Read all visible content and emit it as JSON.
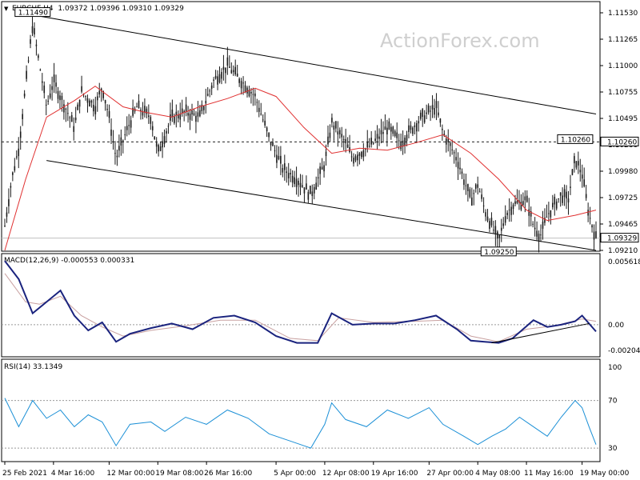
{
  "chart_data": [
    {
      "type": "candlestick",
      "title": "EURCHF,H4  1.09372 1.09396 1.09310 1.09329",
      "symbol": "EURCHF",
      "timeframe": "H4",
      "ohlc_last": {
        "open": 1.09372,
        "high": 1.09396,
        "low": 1.0931,
        "close": 1.09329
      },
      "watermark": "ActionForex.com",
      "ylim": [
        1.0921,
        1.1151
      ],
      "y_ticks": [
        "1.11530",
        "1.11265",
        "1.11000",
        "1.10755",
        "1.10495",
        "1.10260",
        "1.09980",
        "1.09725",
        "1.09465",
        "1.09210"
      ],
      "current_price_label": "1.09329",
      "current_price": 1.09329,
      "resistance_label": "1.10260",
      "resistance_level": 1.1026,
      "annotations": [
        {
          "text": "1.11490",
          "date": "1 Mar 2021",
          "value": 1.1149
        },
        {
          "text": "1.10260",
          "date": "18 May 2021",
          "value": 1.1026
        },
        {
          "text": "1.09250",
          "date": "7 May 2021",
          "value": 1.0925
        }
      ],
      "channel_upper": [
        {
          "date": "1 Mar 2021",
          "value": 1.1149
        },
        {
          "date": "21 May 2021",
          "value": 1.1053
        }
      ],
      "channel_lower": [
        {
          "date": "3 Mar 2021",
          "value": 1.1008
        },
        {
          "date": "21 May 2021",
          "value": 1.0921
        }
      ],
      "moving_average_color": "#e03030",
      "candle_color": "#1a1a1a",
      "close_path": [
        {
          "date": "25 Feb 2021",
          "value": 1.0945
        },
        {
          "date": "26 Feb 2021",
          "value": 1.099
        },
        {
          "date": "27 Feb 2021",
          "value": 1.102
        },
        {
          "date": "28 Feb 2021",
          "value": 1.108
        },
        {
          "date": "1 Mar 2021",
          "value": 1.114
        },
        {
          "date": "2 Mar 2021",
          "value": 1.11
        },
        {
          "date": "3 Mar 2021",
          "value": 1.106
        },
        {
          "date": "4 Mar 2021",
          "value": 1.1085
        },
        {
          "date": "5 Mar 2021",
          "value": 1.107
        },
        {
          "date": "7 Mar 2021",
          "value": 1.104
        },
        {
          "date": "8 Mar 2021",
          "value": 1.1075
        },
        {
          "date": "10 Mar 2021",
          "value": 1.106
        },
        {
          "date": "11 Mar 2021",
          "value": 1.108
        },
        {
          "date": "12 Mar 2021",
          "value": 1.105
        },
        {
          "date": "13 Mar 2021",
          "value": 1.101
        },
        {
          "date": "15 Mar 2021",
          "value": 1.1045
        },
        {
          "date": "16 Mar 2021",
          "value": 1.106
        },
        {
          "date": "18 Mar 2021",
          "value": 1.105
        },
        {
          "date": "19 Mar 2021",
          "value": 1.1015
        },
        {
          "date": "21 Mar 2021",
          "value": 1.105
        },
        {
          "date": "23 Mar 2021",
          "value": 1.1055
        },
        {
          "date": "25 Mar 2021",
          "value": 1.105
        },
        {
          "date": "27 Mar 2021",
          "value": 1.1085
        },
        {
          "date": "29 Mar 2021",
          "value": 1.11
        },
        {
          "date": "31 Mar 2021",
          "value": 1.1085
        },
        {
          "date": "2 Apr 2021",
          "value": 1.107
        },
        {
          "date": "4 Apr 2021",
          "value": 1.103
        },
        {
          "date": "6 Apr 2021",
          "value": 1.1
        },
        {
          "date": "8 Apr 2021",
          "value": 1.099
        },
        {
          "date": "10 Apr 2021",
          "value": 1.0975
        },
        {
          "date": "12 Apr 2021",
          "value": 1.1005
        },
        {
          "date": "13 Apr 2021",
          "value": 1.1045
        },
        {
          "date": "15 Apr 2021",
          "value": 1.1025
        },
        {
          "date": "16 Apr 2021",
          "value": 1.101
        },
        {
          "date": "19 Apr 2021",
          "value": 1.1025
        },
        {
          "date": "21 Apr 2021",
          "value": 1.104
        },
        {
          "date": "23 Apr 2021",
          "value": 1.1025
        },
        {
          "date": "24 Apr 2021",
          "value": 1.1035
        },
        {
          "date": "26 Apr 2021",
          "value": 1.105
        },
        {
          "date": "28 Apr 2021",
          "value": 1.106
        },
        {
          "date": "29 Apr 2021",
          "value": 1.1035
        },
        {
          "date": "1 May 2021",
          "value": 1.101
        },
        {
          "date": "2 May 2021",
          "value": 1.099
        },
        {
          "date": "3 May 2021",
          "value": 1.097
        },
        {
          "date": "4 May 2021",
          "value": 1.0985
        },
        {
          "date": "5 May 2021",
          "value": 1.096
        },
        {
          "date": "6 May 2021",
          "value": 1.0945
        },
        {
          "date": "7 May 2021",
          "value": 1.093
        },
        {
          "date": "8 May 2021",
          "value": 1.0955
        },
        {
          "date": "9 May 2021",
          "value": 1.0965
        },
        {
          "date": "11 May 2021",
          "value": 1.097
        },
        {
          "date": "12 May 2021",
          "value": 1.0945
        },
        {
          "date": "13 May 2021",
          "value": 1.0935
        },
        {
          "date": "14 May 2021",
          "value": 1.0955
        },
        {
          "date": "16 May 2021",
          "value": 1.0975
        },
        {
          "date": "17 May 2021",
          "value": 1.097
        },
        {
          "date": "18 May 2021",
          "value": 1.101
        },
        {
          "date": "19 May 2021",
          "value": 1.0995
        },
        {
          "date": "20 May 2021",
          "value": 1.0955
        },
        {
          "date": "21 May 2021",
          "value": 1.0933
        }
      ],
      "ma_path": [
        {
          "date": "25 Feb 2021",
          "value": 1.0921
        },
        {
          "date": "28 Feb 2021",
          "value": 1.099
        },
        {
          "date": "3 Mar 2021",
          "value": 1.105
        },
        {
          "date": "7 Mar 2021",
          "value": 1.1066
        },
        {
          "date": "10 Mar 2021",
          "value": 1.108
        },
        {
          "date": "14 Mar 2021",
          "value": 1.106
        },
        {
          "date": "17 Mar 2021",
          "value": 1.1055
        },
        {
          "date": "21 Mar 2021",
          "value": 1.105
        },
        {
          "date": "25 Mar 2021",
          "value": 1.106
        },
        {
          "date": "29 Mar 2021",
          "value": 1.1068
        },
        {
          "date": "2 Apr 2021",
          "value": 1.1078
        },
        {
          "date": "5 Apr 2021",
          "value": 1.107
        },
        {
          "date": "9 Apr 2021",
          "value": 1.104
        },
        {
          "date": "13 Apr 2021",
          "value": 1.1015
        },
        {
          "date": "17 Apr 2021",
          "value": 1.102
        },
        {
          "date": "21 Apr 2021",
          "value": 1.1018
        },
        {
          "date": "25 Apr 2021",
          "value": 1.1025
        },
        {
          "date": "29 Apr 2021",
          "value": 1.1033
        },
        {
          "date": "3 May 2021",
          "value": 1.1015
        },
        {
          "date": "7 May 2021",
          "value": 1.099
        },
        {
          "date": "11 May 2021",
          "value": 1.096
        },
        {
          "date": "14 May 2021",
          "value": 1.095
        },
        {
          "date": "18 May 2021",
          "value": 1.0955
        },
        {
          "date": "21 May 2021",
          "value": 1.096
        }
      ]
    },
    {
      "type": "line",
      "title": "MACD(12,26,9) -0.000553 0.000331",
      "ylim": [
        -0.00275,
        0.00575
      ],
      "y_ticks": [
        "0.005618",
        "0.00",
        "-0.002046"
      ],
      "zero_line": 0,
      "series": [
        {
          "name": "MACD",
          "color": "#1a237e",
          "values": [
            {
              "date": "25 Feb 2021",
              "value": 0.0056
            },
            {
              "date": "27 Feb 2021",
              "value": 0.004
            },
            {
              "date": "1 Mar 2021",
              "value": 0.001
            },
            {
              "date": "3 Mar 2021",
              "value": 0.002
            },
            {
              "date": "5 Mar 2021",
              "value": 0.003
            },
            {
              "date": "7 Mar 2021",
              "value": 0.0008
            },
            {
              "date": "9 Mar 2021",
              "value": -0.0005
            },
            {
              "date": "11 Mar 2021",
              "value": 0.0002
            },
            {
              "date": "13 Mar 2021",
              "value": -0.0015
            },
            {
              "date": "15 Mar 2021",
              "value": -0.0008
            },
            {
              "date": "18 Mar 2021",
              "value": -0.0003
            },
            {
              "date": "21 Mar 2021",
              "value": 0.0001
            },
            {
              "date": "24 Mar 2021",
              "value": -0.0004
            },
            {
              "date": "27 Mar 2021",
              "value": 0.0006
            },
            {
              "date": "30 Mar 2021",
              "value": 0.0008
            },
            {
              "date": "2 Apr 2021",
              "value": 0.0002
            },
            {
              "date": "5 Apr 2021",
              "value": -0.001
            },
            {
              "date": "8 Apr 2021",
              "value": -0.0016
            },
            {
              "date": "11 Apr 2021",
              "value": -0.0016
            },
            {
              "date": "13 Apr 2021",
              "value": 0.001
            },
            {
              "date": "16 Apr 2021",
              "value": 0.0
            },
            {
              "date": "19 Apr 2021",
              "value": 0.0001
            },
            {
              "date": "22 Apr 2021",
              "value": 0.0001
            },
            {
              "date": "25 Apr 2021",
              "value": 0.0004
            },
            {
              "date": "28 Apr 2021",
              "value": 0.0008
            },
            {
              "date": "1 May 2021",
              "value": -0.0004
            },
            {
              "date": "3 May 2021",
              "value": -0.0014
            },
            {
              "date": "5 May 2021",
              "value": -0.0015
            },
            {
              "date": "7 May 2021",
              "value": -0.0016
            },
            {
              "date": "9 May 2021",
              "value": -0.0012
            },
            {
              "date": "12 May 2021",
              "value": 0.0004
            },
            {
              "date": "14 May 2021",
              "value": -0.0002
            },
            {
              "date": "16 May 2021",
              "value": 0.0
            },
            {
              "date": "18 May 2021",
              "value": 0.0003
            },
            {
              "date": "19 May 2021",
              "value": 0.0008
            },
            {
              "date": "21 May 2021",
              "value": -0.0006
            }
          ]
        },
        {
          "name": "Signal",
          "color": "#c8a0a0",
          "values": [
            {
              "date": "25 Feb 2021",
              "value": 0.0045
            },
            {
              "date": "28 Feb 2021",
              "value": 0.002
            },
            {
              "date": "2 Mar 2021",
              "value": 0.0018
            },
            {
              "date": "5 Mar 2021",
              "value": 0.0025
            },
            {
              "date": "8 Mar 2021",
              "value": 0.0008
            },
            {
              "date": "11 Mar 2021",
              "value": -0.0002
            },
            {
              "date": "14 Mar 2021",
              "value": -0.001
            },
            {
              "date": "18 Mar 2021",
              "value": -0.0005
            },
            {
              "date": "23 Mar 2021",
              "value": -0.0001
            },
            {
              "date": "28 Mar 2021",
              "value": 0.0004
            },
            {
              "date": "2 Apr 2021",
              "value": 0.0004
            },
            {
              "date": "7 Apr 2021",
              "value": -0.0012
            },
            {
              "date": "11 Apr 2021",
              "value": -0.0014
            },
            {
              "date": "14 Apr 2021",
              "value": 0.0006
            },
            {
              "date": "19 Apr 2021",
              "value": 0.0002
            },
            {
              "date": "25 Apr 2021",
              "value": 0.0003
            },
            {
              "date": "29 Apr 2021",
              "value": 0.0004
            },
            {
              "date": "3 May 2021",
              "value": -0.001
            },
            {
              "date": "7 May 2021",
              "value": -0.0015
            },
            {
              "date": "11 May 2021",
              "value": -0.0004
            },
            {
              "date": "15 May 2021",
              "value": -0.0001
            },
            {
              "date": "19 May 2021",
              "value": 0.0005
            },
            {
              "date": "21 May 2021",
              "value": 0.0003
            }
          ]
        }
      ],
      "trendline": [
        {
          "date": "6 May 2021",
          "value": -0.0016
        },
        {
          "date": "20 May 2021",
          "value": 0.0001
        }
      ]
    },
    {
      "type": "line",
      "title": "RSI(14) 33.1349",
      "ylim": [
        20,
        100
      ],
      "y_ticks": [
        "100",
        "70",
        "30"
      ],
      "levels": [
        70,
        30
      ],
      "series": [
        {
          "name": "RSI(14)",
          "color": "#1a8fd6",
          "values": [
            {
              "date": "25 Feb 2021",
              "value": 72
            },
            {
              "date": "27 Feb 2021",
              "value": 48
            },
            {
              "date": "1 Mar 2021",
              "value": 70
            },
            {
              "date": "3 Mar 2021",
              "value": 55
            },
            {
              "date": "5 Mar 2021",
              "value": 62
            },
            {
              "date": "7 Mar 2021",
              "value": 48
            },
            {
              "date": "9 Mar 2021",
              "value": 58
            },
            {
              "date": "11 Mar 2021",
              "value": 52
            },
            {
              "date": "13 Mar 2021",
              "value": 32
            },
            {
              "date": "15 Mar 2021",
              "value": 50
            },
            {
              "date": "18 Mar 2021",
              "value": 52
            },
            {
              "date": "20 Mar 2021",
              "value": 44
            },
            {
              "date": "23 Mar 2021",
              "value": 56
            },
            {
              "date": "26 Mar 2021",
              "value": 50
            },
            {
              "date": "29 Mar 2021",
              "value": 62
            },
            {
              "date": "1 Apr 2021",
              "value": 55
            },
            {
              "date": "4 Apr 2021",
              "value": 42
            },
            {
              "date": "7 Apr 2021",
              "value": 36
            },
            {
              "date": "10 Apr 2021",
              "value": 30
            },
            {
              "date": "12 Apr 2021",
              "value": 50
            },
            {
              "date": "13 Apr 2021",
              "value": 68
            },
            {
              "date": "15 Apr 2021",
              "value": 54
            },
            {
              "date": "18 Apr 2021",
              "value": 48
            },
            {
              "date": "21 Apr 2021",
              "value": 62
            },
            {
              "date": "24 Apr 2021",
              "value": 55
            },
            {
              "date": "27 Apr 2021",
              "value": 64
            },
            {
              "date": "29 Apr 2021",
              "value": 50
            },
            {
              "date": "2 May 2021",
              "value": 40
            },
            {
              "date": "4 May 2021",
              "value": 33
            },
            {
              "date": "6 May 2021",
              "value": 40
            },
            {
              "date": "8 May 2021",
              "value": 46
            },
            {
              "date": "10 May 2021",
              "value": 56
            },
            {
              "date": "12 May 2021",
              "value": 48
            },
            {
              "date": "14 May 2021",
              "value": 40
            },
            {
              "date": "16 May 2021",
              "value": 56
            },
            {
              "date": "18 May 2021",
              "value": 70
            },
            {
              "date": "19 May 2021",
              "value": 64
            },
            {
              "date": "20 May 2021",
              "value": 48
            },
            {
              "date": "21 May 2021",
              "value": 33
            }
          ]
        }
      ]
    }
  ],
  "x_axis": {
    "start": "25 Feb 2021",
    "end": "21 May 2021",
    "ticks": [
      {
        "label": "25 Feb 2021",
        "date": "25 Feb 2021"
      },
      {
        "label": "4 Mar 16:00",
        "date": "4 Mar 2021"
      },
      {
        "label": "12 Mar 00:00",
        "date": "12 Mar 2021"
      },
      {
        "label": "19 Mar 08:00",
        "date": "19 Mar 2021"
      },
      {
        "label": "26 Mar 16:00",
        "date": "26 Mar 2021"
      },
      {
        "label": "5 Apr 00:00",
        "date": "5 Apr 2021"
      },
      {
        "label": "12 Apr 08:00",
        "date": "12 Apr 2021"
      },
      {
        "label": "19 Apr 16:00",
        "date": "19 Apr 2021"
      },
      {
        "label": "27 Apr 00:00",
        "date": "27 Apr 2021"
      },
      {
        "label": "4 May 08:00",
        "date": "4 May 2021"
      },
      {
        "label": "11 May 16:00",
        "date": "11 May 2021"
      },
      {
        "label": "19 May 00:00",
        "date": "19 May 2021"
      }
    ]
  }
}
